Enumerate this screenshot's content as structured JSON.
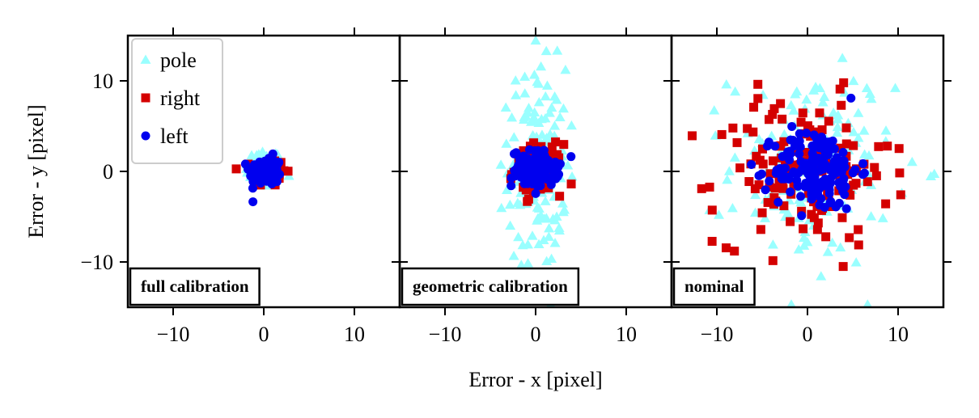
{
  "chart_data": [
    {
      "type": "scatter",
      "panel_label": "full calibration",
      "xlim": [
        -15,
        15
      ],
      "ylim": [
        -15,
        15
      ],
      "xticks": [
        -10,
        0,
        10
      ],
      "yticks": [
        -10,
        0,
        10
      ],
      "series": [
        {
          "name": "pole",
          "spread": {
            "center": [
              0.0,
              0.3
            ],
            "sx": 1.0,
            "sy": 1.1,
            "n": 80
          }
        },
        {
          "name": "right",
          "spread": {
            "center": [
              0.6,
              -0.1
            ],
            "sx": 0.9,
            "sy": 0.8,
            "n": 60
          }
        },
        {
          "name": "left",
          "spread": {
            "center": [
              0.2,
              0.0
            ],
            "sx": 0.9,
            "sy": 0.8,
            "n": 90
          }
        }
      ]
    },
    {
      "type": "scatter",
      "panel_label": "geometric calibration",
      "xlim": [
        -15,
        15
      ],
      "ylim": [
        -15,
        15
      ],
      "xticks": [
        -10,
        0,
        10
      ],
      "yticks": [
        -10,
        0,
        10
      ],
      "series": [
        {
          "name": "pole",
          "spread": {
            "center": [
              0.2,
              0.5
            ],
            "sx": 1.6,
            "sy": 5.5,
            "n": 160
          }
        },
        {
          "name": "right",
          "spread": {
            "center": [
              0.3,
              0.2
            ],
            "sx": 1.3,
            "sy": 1.4,
            "n": 90
          }
        },
        {
          "name": "left",
          "spread": {
            "center": [
              0.0,
              0.3
            ],
            "sx": 1.3,
            "sy": 1.0,
            "n": 110
          }
        }
      ]
    },
    {
      "type": "scatter",
      "panel_label": "nominal",
      "xlim": [
        -15,
        15
      ],
      "ylim": [
        -15,
        15
      ],
      "xticks": [
        -10,
        0,
        10
      ],
      "yticks": [
        -10,
        0,
        10
      ],
      "series": [
        {
          "name": "pole",
          "spread": {
            "center": [
              0.5,
              0.5
            ],
            "sx": 4.5,
            "sy": 5.5,
            "n": 140
          }
        },
        {
          "name": "right",
          "spread": {
            "center": [
              -0.5,
              0.0
            ],
            "sx": 4.8,
            "sy": 4.0,
            "n": 150
          }
        },
        {
          "name": "left",
          "spread": {
            "center": [
              1.0,
              0.2
            ],
            "sx": 2.3,
            "sy": 2.3,
            "n": 160
          }
        }
      ]
    }
  ],
  "legend": {
    "location": "upper-left of first panel",
    "entries": [
      {
        "label": "pole",
        "color": "#99FFFF",
        "marker": "triangle"
      },
      {
        "label": "right",
        "color": "#D40000",
        "marker": "square"
      },
      {
        "label": "left",
        "color": "#0000EE",
        "marker": "circle"
      }
    ]
  },
  "axes": {
    "xlabel": "Error - x [pixel]",
    "ylabel": "Error - y [pixel]"
  }
}
